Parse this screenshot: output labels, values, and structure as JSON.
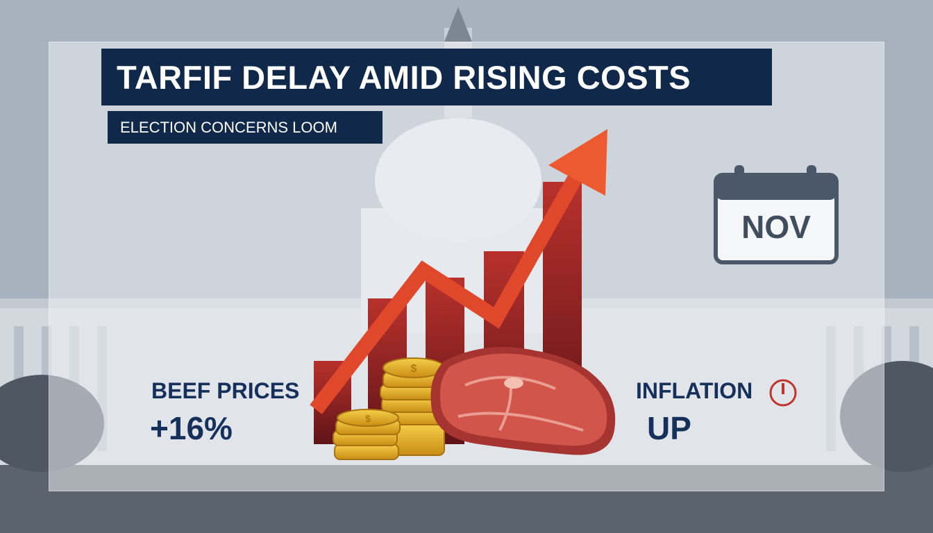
{
  "headline": "TARFIF DELAY AMID RISING COSTS",
  "subheadline": "ELECTION CONCERNS LOOM",
  "beef": {
    "label": "BEEF PRICES",
    "value": "+16%"
  },
  "inflation": {
    "label": "INFLATION",
    "value": "UP"
  },
  "calendar": {
    "month": "NOV"
  },
  "icons": {
    "background": "capitol-building",
    "chart": "rising-bar-chart-with-arrow",
    "coins": "gold-coin-stacks",
    "steak": "beef-steak",
    "alert": "alert-clock-icon",
    "calendar": "calendar-icon"
  },
  "colors": {
    "banner": "#10294a",
    "text": "#15305a",
    "arrow": "#e0482c",
    "bars": "#8e1f22",
    "coins": "#e7b126",
    "steak": "#c44a40",
    "calendar": "#4a5869"
  }
}
